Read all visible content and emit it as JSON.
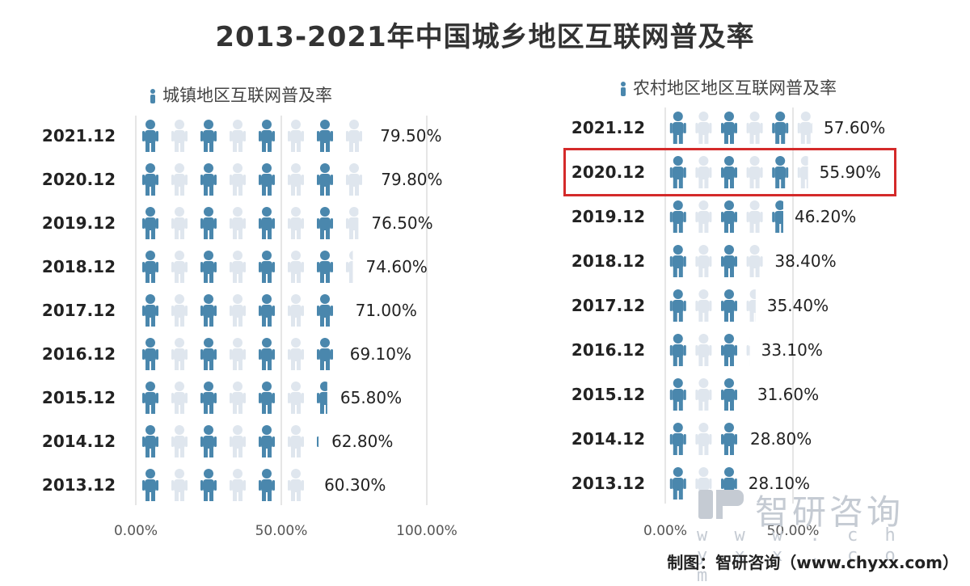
{
  "title": "2013-2021年中国城乡地区互联网普及率",
  "credit": "制图：智研咨询（www.chyxx.com）",
  "watermark": {
    "name": "智研咨询",
    "url": "w w w . c h y x x . c o m"
  },
  "colors": {
    "filled": "#4a87ad",
    "empty": "#dfe6ee",
    "highlight": "#d42a2a",
    "axis": "#cccccc"
  },
  "chart_data": [
    {
      "type": "bar",
      "style": "pictograph",
      "legend": "城镇地区互联网普及率",
      "categories": [
        "2021.12",
        "2020.12",
        "2019.12",
        "2018.12",
        "2017.12",
        "2016.12",
        "2015.12",
        "2014.12",
        "2013.12"
      ],
      "values": [
        79.5,
        79.8,
        76.5,
        74.6,
        71.0,
        69.1,
        65.8,
        62.8,
        60.3
      ],
      "value_labels": [
        "79.50%",
        "79.80%",
        "76.50%",
        "74.60%",
        "71.00%",
        "69.10%",
        "65.80%",
        "62.80%",
        "60.30%"
      ],
      "xlim": [
        0,
        100
      ],
      "xticks": [
        0,
        50,
        100
      ],
      "xtick_labels": [
        "0.00%",
        "50.00%",
        "100.00%"
      ]
    },
    {
      "type": "bar",
      "style": "pictograph",
      "legend": "农村地区地区互联网普及率",
      "categories": [
        "2021.12",
        "2020.12",
        "2019.12",
        "2018.12",
        "2017.12",
        "2016.12",
        "2015.12",
        "2014.12",
        "2013.12"
      ],
      "values": [
        57.6,
        55.9,
        46.2,
        38.4,
        35.4,
        33.1,
        31.6,
        28.8,
        28.1
      ],
      "value_labels": [
        "57.60%",
        "55.90%",
        "46.20%",
        "38.40%",
        "35.40%",
        "33.10%",
        "31.60%",
        "28.80%",
        "28.10%"
      ],
      "xlim": [
        0,
        100
      ],
      "xticks": [
        0,
        50
      ],
      "xtick_labels": [
        "0.00%",
        "50.00%"
      ],
      "highlighted_category": "2020.12"
    }
  ]
}
